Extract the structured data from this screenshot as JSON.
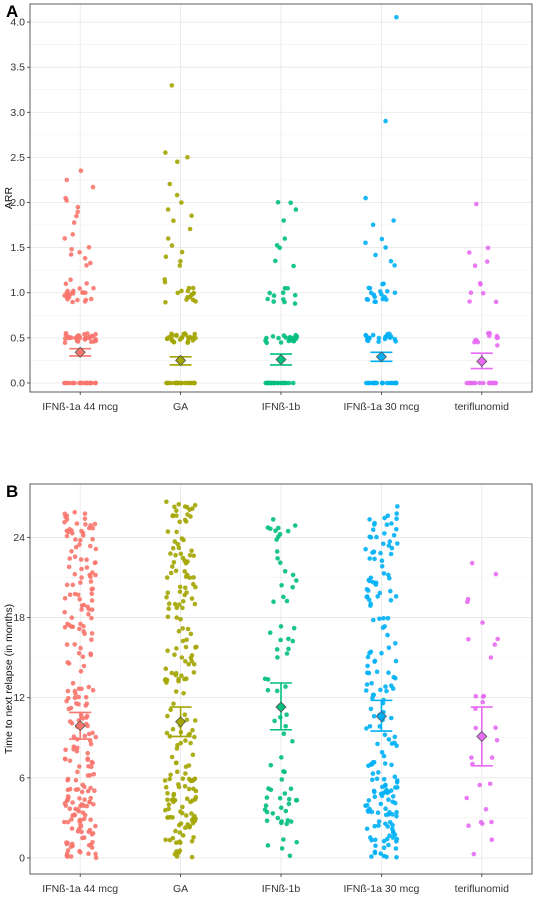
{
  "chart_data": [
    {
      "panel_label": "A",
      "type": "scatter",
      "subtype": "jittered dot plot with mean and 95% CI error bars",
      "ylabel": "ARR",
      "xlabel": "",
      "ylim": [
        -0.1,
        4.2
      ],
      "yticks": [
        0.0,
        0.5,
        1.0,
        1.5,
        2.0,
        2.5,
        3.0,
        3.5,
        4.0
      ],
      "ytick_labels": [
        "0.0",
        "0.5",
        "1.0",
        "1.5",
        "2.0",
        "2.5",
        "3.0",
        "3.5",
        "4.0"
      ],
      "grid": true,
      "categories": [
        "IFNß-1a 44 mcg",
        "GA",
        "IFNß-1b",
        "IFNß-1a 30 mcg",
        "teriflunomid"
      ],
      "colors": [
        "#F8766D",
        "#A3A500",
        "#00BF7D",
        "#00B0F6",
        "#E76BF3"
      ],
      "series": [
        {
          "values_note": "individual points",
          "points": [
            0.0,
            0.0,
            0.0,
            0.0,
            0.0,
            0.0,
            0.0,
            0.0,
            0.48,
            0.5,
            0.5,
            0.5,
            0.52,
            0.49,
            0.51,
            0.47,
            0.53,
            0.46,
            0.54,
            0.5,
            0.5,
            0.55,
            0.45,
            0.52,
            0.9,
            0.95,
            1.0,
            1.0,
            1.0,
            0.98,
            1.02,
            0.93,
            1.05,
            1.1,
            0.92,
            0.97,
            1.14,
            1.3,
            1.33,
            1.38,
            1.42,
            1.45,
            1.48,
            1.5,
            1.6,
            1.65,
            1.78,
            1.85,
            1.9,
            1.95,
            2.02,
            2.05,
            2.17,
            2.25,
            2.35
          ],
          "mean": 0.34,
          "ci_low": 0.3,
          "ci_high": 0.38
        },
        {
          "values_note": "individual points",
          "points": [
            0.0,
            0.0,
            0.0,
            0.0,
            0.0,
            0.0,
            0.0,
            0.0,
            0.47,
            0.5,
            0.5,
            0.5,
            0.52,
            0.49,
            0.51,
            0.45,
            0.53,
            0.46,
            0.54,
            0.55,
            0.48,
            0.9,
            0.95,
            1.0,
            0.98,
            1.02,
            0.92,
            1.05,
            1.12,
            1.15,
            1.3,
            1.35,
            1.4,
            1.45,
            1.52,
            1.6,
            1.7,
            1.8,
            1.85,
            1.92,
            2.0,
            2.08,
            2.2,
            2.45,
            2.5,
            2.55,
            3.3
          ],
          "mean": 0.25,
          "ci_low": 0.2,
          "ci_high": 0.29
        },
        {
          "values_note": "individual points",
          "points": [
            0.0,
            0.0,
            0.0,
            0.0,
            0.0,
            0.0,
            0.0,
            0.47,
            0.5,
            0.5,
            0.52,
            0.49,
            0.53,
            0.46,
            0.51,
            0.45,
            0.9,
            0.93,
            0.97,
            1.0,
            1.05,
            0.88,
            1.3,
            1.35,
            1.5,
            1.52,
            1.6,
            1.8,
            1.92,
            2.0,
            2.0
          ],
          "mean": 0.26,
          "ci_low": 0.2,
          "ci_high": 0.32
        },
        {
          "values_note": "individual points",
          "points": [
            0.0,
            0.0,
            0.0,
            0.0,
            0.0,
            0.0,
            0.0,
            0.0,
            0.47,
            0.5,
            0.5,
            0.5,
            0.52,
            0.49,
            0.51,
            0.53,
            0.46,
            0.54,
            0.9,
            0.93,
            0.95,
            1.0,
            0.98,
            1.02,
            1.05,
            1.1,
            0.92,
            1.3,
            1.35,
            1.42,
            1.5,
            1.55,
            1.6,
            1.75,
            1.8,
            2.05,
            2.9,
            4.05
          ],
          "mean": 0.29,
          "ci_low": 0.24,
          "ci_high": 0.34
        },
        {
          "values_note": "individual points",
          "points": [
            0.0,
            0.0,
            0.0,
            0.0,
            0.0,
            0.0,
            0.42,
            0.45,
            0.5,
            0.52,
            0.55,
            0.48,
            0.9,
            1.0,
            1.1,
            1.3,
            1.35,
            1.45,
            1.5,
            1.98
          ],
          "mean": 0.24,
          "ci_low": 0.16,
          "ci_high": 0.33
        }
      ]
    },
    {
      "panel_label": "B",
      "type": "scatter",
      "subtype": "jittered dot plot with mean and 95% CI error bars",
      "ylabel": "Time to next relapse (in months)",
      "xlabel": "",
      "ylim": [
        -1.2,
        28
      ],
      "yticks": [
        0,
        6,
        12,
        18,
        24
      ],
      "ytick_labels": [
        "0",
        "6",
        "12",
        "18",
        "24"
      ],
      "grid": true,
      "categories": [
        "IFNß-1a 44 mcg",
        "GA",
        "IFNß-1b",
        "IFNß-1a 30 mcg",
        "teriflunomid"
      ],
      "colors": [
        "#F8766D",
        "#A3A500",
        "#00BF7D",
        "#00B0F6",
        "#E76BF3"
      ],
      "series": [
        {
          "n": 230,
          "mean": 9.9,
          "ci_low": 8.9,
          "ci_high": 10.9,
          "max": 25.9
        },
        {
          "n": 200,
          "mean": 10.2,
          "ci_low": 9.1,
          "ci_high": 11.3,
          "max": 26.9
        },
        {
          "n": 75,
          "mean": 11.3,
          "ci_low": 9.6,
          "ci_high": 13.1,
          "max": 25.6
        },
        {
          "n": 190,
          "mean": 10.6,
          "ci_low": 9.5,
          "ci_high": 11.8,
          "max": 26.4
        },
        {
          "n": 30,
          "mean": 9.1,
          "ci_low": 6.9,
          "ci_high": 11.3,
          "max": 22.2
        }
      ]
    }
  ]
}
